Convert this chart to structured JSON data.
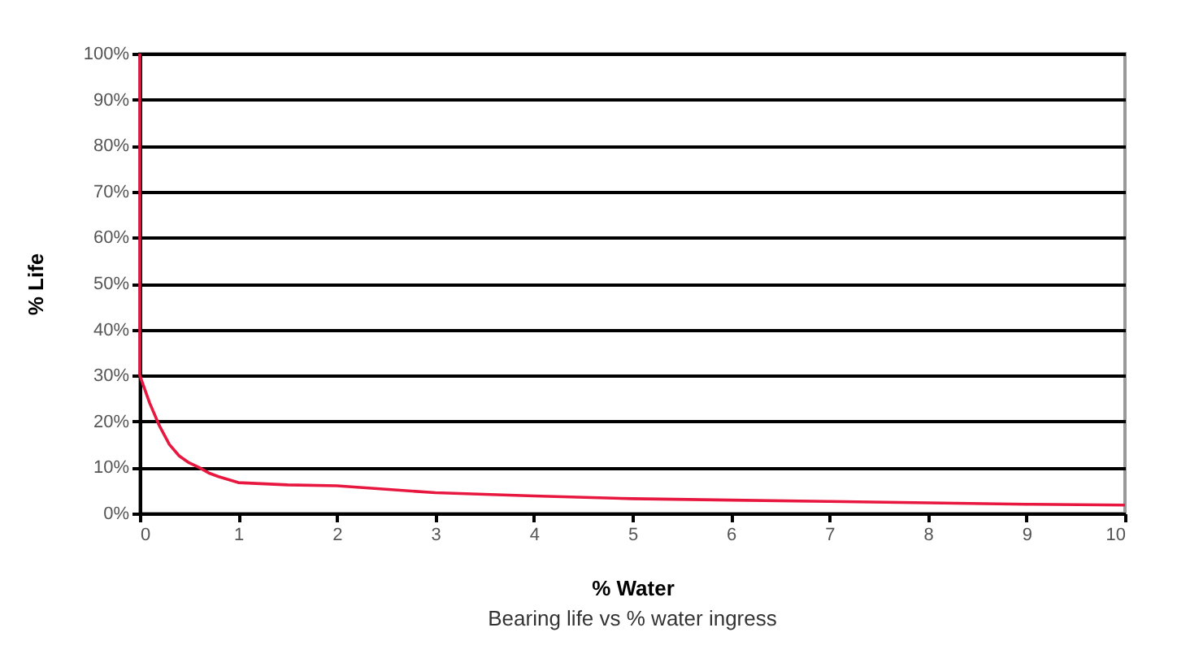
{
  "chart_data": {
    "type": "line",
    "xlabel": "% Water",
    "ylabel": "% Life",
    "annotations": [
      "Bearing life vs % water ingress"
    ],
    "series": [
      {
        "color": "#e8173f",
        "x": [
          0,
          0,
          0.1,
          0.2,
          0.3,
          0.4,
          0.5,
          0.6,
          0.7,
          0.8,
          1,
          1.5,
          2,
          3,
          4,
          5,
          6,
          7,
          8,
          9,
          10
        ],
        "values": [
          100,
          30,
          24,
          19,
          15,
          12.5,
          11,
          10,
          8.8,
          8,
          6.7,
          6.2,
          6,
          4.5,
          3.8,
          3.2,
          2.9,
          2.6,
          2.3,
          2.0,
          1.8
        ]
      }
    ],
    "xlim": [
      0,
      10
    ],
    "xticks": [
      0,
      1,
      2,
      3,
      4,
      5,
      6,
      7,
      8,
      9,
      10
    ],
    "ylim": [
      0,
      100
    ],
    "yticks": [
      {
        "value": 0,
        "label": "0%"
      },
      {
        "value": 10,
        "label": "10%"
      },
      {
        "value": 20,
        "label": "20%"
      },
      {
        "value": 30,
        "label": "30%"
      },
      {
        "value": 40,
        "label": "40%"
      },
      {
        "value": 50,
        "label": "50%"
      },
      {
        "value": 60,
        "label": "60%"
      },
      {
        "value": 70,
        "label": "70%"
      },
      {
        "value": 80,
        "label": "80%"
      },
      {
        "value": 90,
        "label": "90%"
      },
      {
        "value": 100,
        "label": "100%"
      }
    ],
    "grid": "y",
    "marker": "none",
    "line_style": "solid"
  }
}
